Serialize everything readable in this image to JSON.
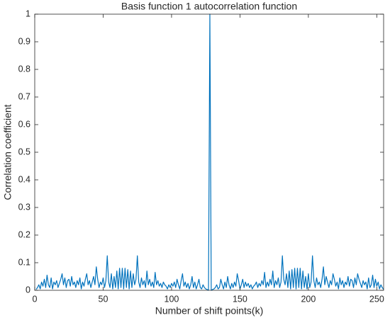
{
  "chart_data": {
    "type": "line",
    "title": "Basis function 1 autocorrelation function",
    "x_label": "Number of shift points(k)",
    "y_label": "Correlation coefficient",
    "xlim": [
      0,
      255
    ],
    "xticks": [
      0,
      50,
      100,
      150,
      200,
      250
    ],
    "ylim": [
      0,
      1
    ],
    "yticks": [
      0,
      0.1,
      0.2,
      0.3,
      0.4,
      0.5,
      0.6,
      0.7,
      0.8,
      0.9,
      1
    ],
    "grid": false,
    "x": [
      1,
      2,
      3,
      4,
      5,
      6,
      7,
      8,
      9,
      10,
      11,
      12,
      13,
      14,
      15,
      16,
      17,
      18,
      19,
      20,
      21,
      22,
      23,
      24,
      25,
      26,
      27,
      28,
      29,
      30,
      31,
      32,
      33,
      34,
      35,
      36,
      37,
      38,
      39,
      40,
      41,
      42,
      43,
      44,
      45,
      46,
      47,
      48,
      49,
      50,
      51,
      52,
      53,
      54,
      55,
      56,
      57,
      58,
      59,
      60,
      61,
      62,
      63,
      64,
      65,
      66,
      67,
      68,
      69,
      70,
      71,
      72,
      73,
      74,
      75,
      76,
      77,
      78,
      79,
      80,
      81,
      82,
      83,
      84,
      85,
      86,
      87,
      88,
      89,
      90,
      91,
      92,
      93,
      94,
      95,
      96,
      97,
      98,
      99,
      100,
      101,
      102,
      103,
      104,
      105,
      106,
      107,
      108,
      109,
      110,
      111,
      112,
      113,
      114,
      115,
      116,
      117,
      118,
      119,
      120,
      121,
      122,
      123,
      124,
      125,
      126,
      127,
      128,
      129,
      130,
      131,
      132,
      133,
      134,
      135,
      136,
      137,
      138,
      139,
      140,
      141,
      142,
      143,
      144,
      145,
      146,
      147,
      148,
      149,
      150,
      151,
      152,
      153,
      154,
      155,
      156,
      157,
      158,
      159,
      160,
      161,
      162,
      163,
      164,
      165,
      166,
      167,
      168,
      169,
      170,
      171,
      172,
      173,
      174,
      175,
      176,
      177,
      178,
      179,
      180,
      181,
      182,
      183,
      184,
      185,
      186,
      187,
      188,
      189,
      190,
      191,
      192,
      193,
      194,
      195,
      196,
      197,
      198,
      199,
      200,
      201,
      202,
      203,
      204,
      205,
      206,
      207,
      208,
      209,
      210,
      211,
      212,
      213,
      214,
      215,
      216,
      217,
      218,
      219,
      220,
      221,
      222,
      223,
      224,
      225,
      226,
      227,
      228,
      229,
      230,
      231,
      232,
      233,
      234,
      235,
      236,
      237,
      238,
      239,
      240,
      241,
      242,
      243,
      244,
      245,
      246,
      247,
      248,
      249,
      250,
      251,
      252,
      253,
      254,
      255
    ],
    "series": [
      {
        "color": "#0072bd",
        "values": [
          0.003,
          0.01,
          0.02,
          0.005,
          0.03,
          0.015,
          0.04,
          0.01,
          0.055,
          0.02,
          0.01,
          0.045,
          0.005,
          0.03,
          0.02,
          0.035,
          0.01,
          0.025,
          0.04,
          0.06,
          0.02,
          0.045,
          0.01,
          0.035,
          0.04,
          0.015,
          0.05,
          0.02,
          0.03,
          0.01,
          0.035,
          0.02,
          0.045,
          0.005,
          0.03,
          0.015,
          0.04,
          0.06,
          0.02,
          0.035,
          0.01,
          0.03,
          0.05,
          0.02,
          0.085,
          0.04,
          0.01,
          0.03,
          0.02,
          0.045,
          0.01,
          0.035,
          0.125,
          0.03,
          0.01,
          0.06,
          0.005,
          0.05,
          0.01,
          0.07,
          0.005,
          0.08,
          0.01,
          0.08,
          0.005,
          0.08,
          0.01,
          0.075,
          0.005,
          0.07,
          0.01,
          0.06,
          0.02,
          0.04,
          0.125,
          0.03,
          0.01,
          0.045,
          0.02,
          0.035,
          0.01,
          0.07,
          0.02,
          0.04,
          0.015,
          0.03,
          0.01,
          0.065,
          0.02,
          0.035,
          0.015,
          0.025,
          0.01,
          0.03,
          0.02,
          0.015,
          0.005,
          0.02,
          0.01,
          0.025,
          0.015,
          0.03,
          0.01,
          0.04,
          0.02,
          0.005,
          0.035,
          0.06,
          0.015,
          0.03,
          0.01,
          0.025,
          0.005,
          0.02,
          0.05,
          0.01,
          0.03,
          0.005,
          0.02,
          0.04,
          0.01,
          0.005,
          0.02,
          0.01,
          0.005,
          0.003,
          0.0,
          1,
          0.0,
          0.003,
          0.005,
          0.01,
          0.02,
          0.005,
          0.01,
          0.04,
          0.02,
          0.005,
          0.03,
          0.01,
          0.05,
          0.02,
          0.005,
          0.025,
          0.01,
          0.03,
          0.015,
          0.06,
          0.035,
          0.005,
          0.02,
          0.04,
          0.01,
          0.03,
          0.015,
          0.025,
          0.01,
          0.02,
          0.005,
          0.015,
          0.02,
          0.03,
          0.01,
          0.025,
          0.015,
          0.035,
          0.02,
          0.065,
          0.01,
          0.03,
          0.015,
          0.04,
          0.02,
          0.07,
          0.01,
          0.035,
          0.02,
          0.045,
          0.01,
          0.03,
          0.125,
          0.04,
          0.02,
          0.06,
          0.01,
          0.07,
          0.005,
          0.075,
          0.01,
          0.08,
          0.005,
          0.08,
          0.01,
          0.08,
          0.005,
          0.07,
          0.01,
          0.05,
          0.005,
          0.06,
          0.01,
          0.03,
          0.125,
          0.035,
          0.01,
          0.045,
          0.02,
          0.03,
          0.01,
          0.04,
          0.085,
          0.02,
          0.05,
          0.03,
          0.01,
          0.035,
          0.02,
          0.06,
          0.04,
          0.015,
          0.03,
          0.005,
          0.045,
          0.02,
          0.035,
          0.01,
          0.03,
          0.02,
          0.05,
          0.015,
          0.04,
          0.035,
          0.01,
          0.045,
          0.02,
          0.06,
          0.04,
          0.025,
          0.01,
          0.035,
          0.02,
          0.03,
          0.005,
          0.045,
          0.01,
          0.02,
          0.055,
          0.01,
          0.04,
          0.015,
          0.03,
          0.005,
          0.02,
          0.01,
          0.003
        ]
      }
    ]
  }
}
